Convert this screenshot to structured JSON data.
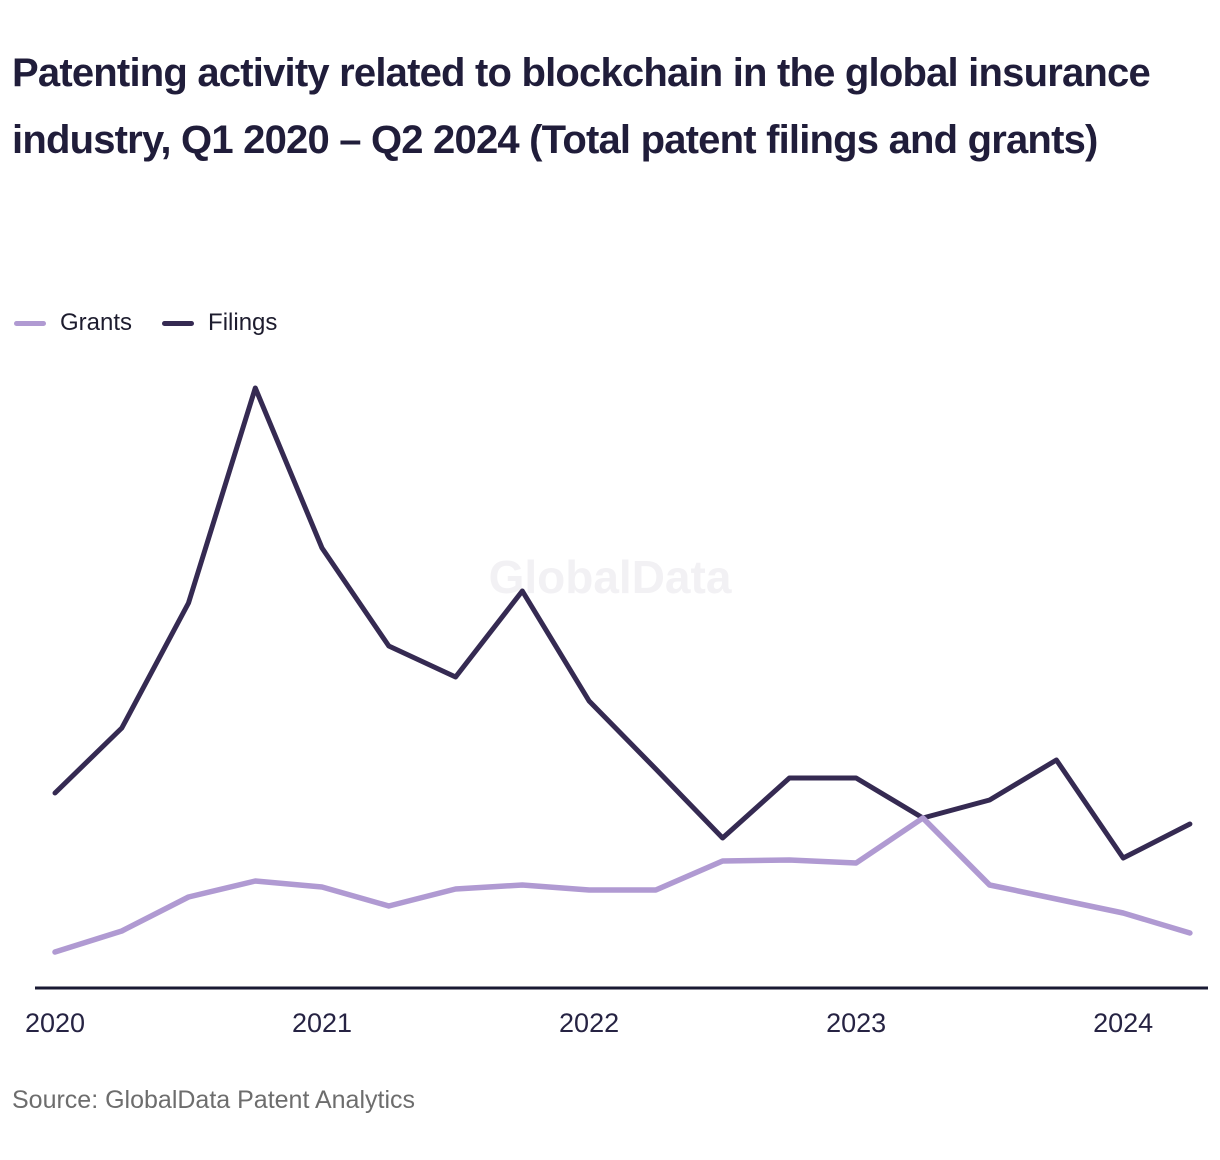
{
  "title": "Patenting activity related to blockchain in the global insurance industry, Q1 2020 – Q2 2024 (Total patent filings and grants)",
  "watermark": "GlobalData",
  "source": "Source: GlobalData Patent Analytics",
  "colors": {
    "title_text": "#201d3a",
    "axis_line": "#191a33",
    "tick_text": "#262343",
    "source_text": "#6d6d6d",
    "watermark_text": "#f2f1f4",
    "background": "#ffffff",
    "grants_line": "#b09ad2",
    "filings_line": "#352a52"
  },
  "chart_data": {
    "type": "line",
    "title": "Patenting activity related to blockchain in the global insurance industry, Q1 2020 – Q2 2024 (Total patent filings and grants)",
    "xlabel": "",
    "ylabel": "",
    "x_tick_labels": [
      "2020",
      "2021",
      "2022",
      "2023",
      "2024"
    ],
    "categories": [
      "Q1 2020",
      "Q2 2020",
      "Q3 2020",
      "Q4 2020",
      "Q1 2021",
      "Q2 2021",
      "Q3 2021",
      "Q4 2021",
      "Q1 2022",
      "Q2 2022",
      "Q3 2022",
      "Q4 2022",
      "Q1 2023",
      "Q2 2023",
      "Q3 2023",
      "Q4 2023",
      "Q1 2024",
      "Q2 2024"
    ],
    "series": [
      {
        "name": "Grants",
        "color": "#b09ad2",
        "values": [
          36,
          57,
          91,
          107,
          101,
          82,
          99,
          103,
          98,
          98,
          127,
          128,
          125,
          170,
          103,
          89,
          75,
          55
        ]
      },
      {
        "name": "Filings",
        "color": "#352a52",
        "values": [
          195,
          260,
          385,
          600,
          440,
          342,
          311,
          397,
          287,
          219,
          150,
          210,
          210,
          170,
          188,
          228,
          130,
          164
        ]
      }
    ],
    "ylim": [
      0,
      640
    ],
    "y_axis_visible": false,
    "grid": false,
    "legend_position": "top-left",
    "units": "relative units (y-axis is unlabeled in the figure)"
  }
}
